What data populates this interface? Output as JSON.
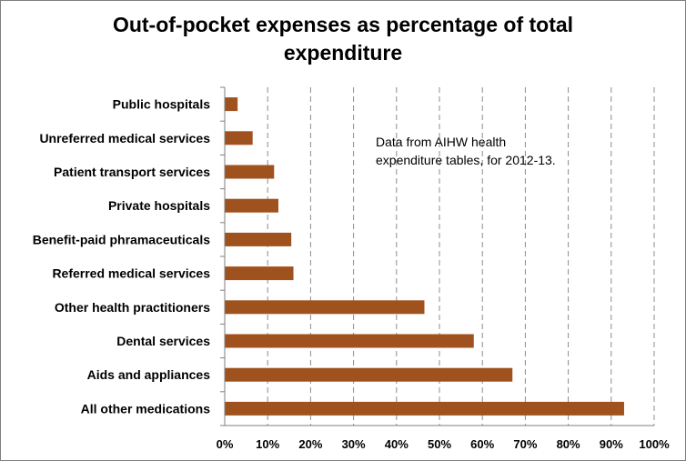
{
  "chart_data": {
    "type": "bar",
    "orientation": "horizontal",
    "title_line1": "Out-of-pocket expenses as percentage of total",
    "title_line2": "expenditure",
    "annotation_line1": "Data from AIHW health",
    "annotation_line2": "expenditure tables, for 2012-13.",
    "categories": [
      "Public hospitals",
      "Unreferred medical services",
      "Patient transport services",
      "Private hospitals",
      "Benefit-paid phramaceuticals",
      "Referred medical services",
      "Other health practitioners",
      "Dental services",
      "Aids and appliances",
      "All other medications"
    ],
    "values": [
      3,
      6.5,
      11.5,
      12.5,
      15.5,
      16,
      46.5,
      58,
      67,
      93
    ],
    "xlim": [
      0,
      100
    ],
    "x_ticks": [
      "0%",
      "10%",
      "20%",
      "30%",
      "40%",
      "50%",
      "60%",
      "70%",
      "80%",
      "90%",
      "100%"
    ],
    "grid": "vertical dashed",
    "legend": "none",
    "bar_color": "#a0521e"
  }
}
